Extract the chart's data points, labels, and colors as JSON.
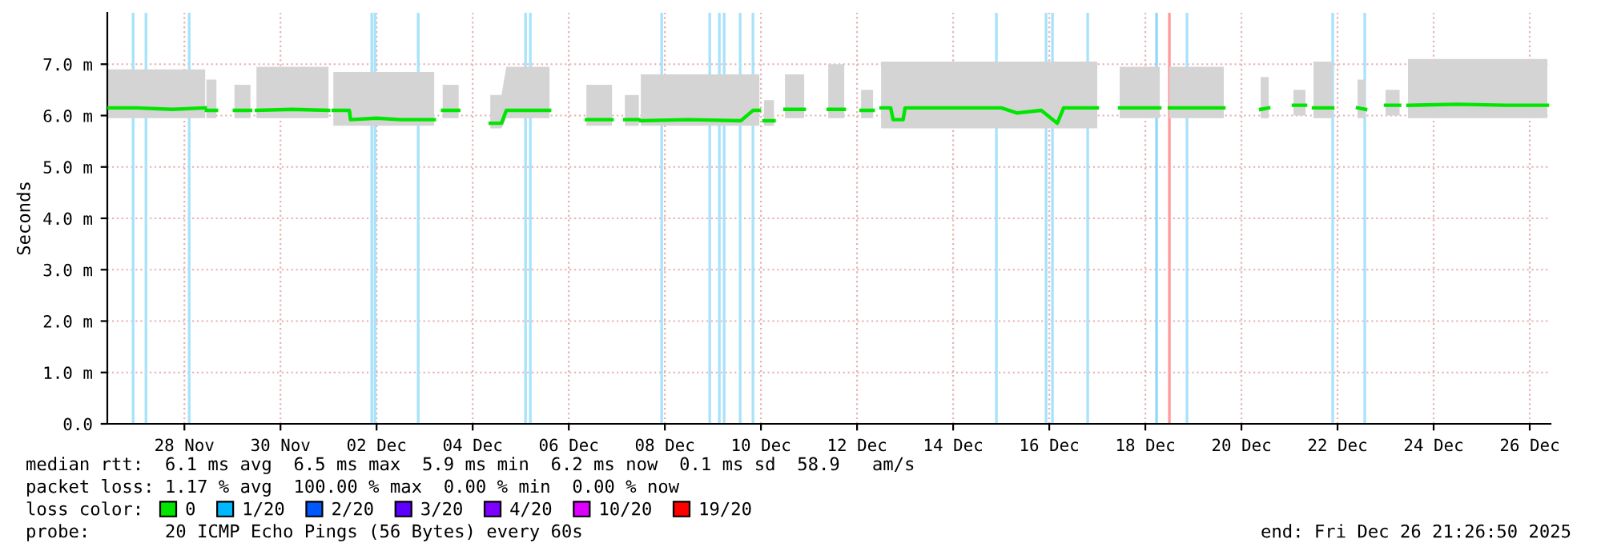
{
  "chart_data": {
    "type": "line",
    "ylabel": "Seconds",
    "xlim": [
      "2025-11-26T21:30",
      "2025-12-26T22:24"
    ],
    "ylim": [
      0,
      8
    ],
    "yticks": [
      {
        "value": 0,
        "label": "0.0"
      },
      {
        "value": 1,
        "label": "1.0 m"
      },
      {
        "value": 2,
        "label": "2.0 m"
      },
      {
        "value": 3,
        "label": "3.0 m"
      },
      {
        "value": 4,
        "label": "4.0 m"
      },
      {
        "value": 5,
        "label": "5.0 m"
      },
      {
        "value": 6,
        "label": "6.0 m"
      },
      {
        "value": 7,
        "label": "7.0 m"
      }
    ],
    "xticks": [
      {
        "value": "2025-11-28T12:00",
        "label": "28 Nov"
      },
      {
        "value": "2025-11-30T12:00",
        "label": "30 Nov"
      },
      {
        "value": "2025-12-02T12:00",
        "label": "02 Dec"
      },
      {
        "value": "2025-12-04T12:00",
        "label": "04 Dec"
      },
      {
        "value": "2025-12-06T12:00",
        "label": "06 Dec"
      },
      {
        "value": "2025-12-08T12:00",
        "label": "08 Dec"
      },
      {
        "value": "2025-12-10T12:00",
        "label": "10 Dec"
      },
      {
        "value": "2025-12-12T12:00",
        "label": "12 Dec"
      },
      {
        "value": "2025-12-14T12:00",
        "label": "14 Dec"
      },
      {
        "value": "2025-12-16T12:00",
        "label": "16 Dec"
      },
      {
        "value": "2025-12-18T12:00",
        "label": "18 Dec"
      },
      {
        "value": "2025-12-20T12:00",
        "label": "20 Dec"
      },
      {
        "value": "2025-12-22T12:00",
        "label": "22 Dec"
      },
      {
        "value": "2025-12-24T12:00",
        "label": "24 Dec"
      },
      {
        "value": "2025-12-26T12:00",
        "label": "26 Dec"
      }
    ],
    "grid": true,
    "legend": "bottom left",
    "series": [
      {
        "name": "0",
        "color": "#00e600",
        "x": [
          "2025-11-26T21:36",
          "2025-11-27T12:00",
          "2025-11-28T06:00",
          "2025-11-28T22:24",
          "2025-11-28T22:40",
          "2025-11-28T23:00",
          "2025-11-29T04:00",
          "2025-11-29T08:00",
          "2025-11-29T13:00",
          "2025-11-29T21:00",
          "2025-11-29T22:00",
          "2025-11-30T00:00",
          "2025-11-30T18:00",
          "2025-12-01T12:00",
          "2025-12-01T13:00",
          "2025-12-01T14:24",
          "2025-12-01T22:24",
          "2025-12-01T23:00",
          "2025-12-02T12:00",
          "2025-12-03T00:00",
          "2025-12-03T16:48",
          "2025-12-03T20:00",
          "2025-12-03T21:00",
          "2025-12-04T05:00",
          "2025-12-04T10:00",
          "2025-12-04T20:48",
          "2025-12-05T02:24",
          "2025-12-05T04:48",
          "2025-12-06T02:24",
          "2025-12-06T10:00",
          "2025-12-06T20:48",
          "2025-12-07T09:36",
          "2025-12-07T15:00",
          "2025-12-07T16:00",
          "2025-12-07T23:00",
          "2025-12-07T23:30",
          "2025-12-08T00:00",
          "2025-12-09T00:00",
          "2025-12-10T02:00",
          "2025-12-10T08:00",
          "2025-12-10T11:12",
          "2025-12-10T13:00",
          "2025-12-10T13:30",
          "2025-12-10T18:30",
          "2025-12-10T20:00",
          "2025-12-11T00:00",
          "2025-12-11T09:36",
          "2025-12-11T15:00",
          "2025-12-11T21:36",
          "2025-12-12T05:36",
          "2025-12-12T12:00",
          "2025-12-12T14:00",
          "2025-12-12T20:00",
          "2025-12-12T21:00",
          "2025-12-13T00:00",
          "2025-12-13T04:48",
          "2025-12-13T06:00",
          "2025-12-13T11:00",
          "2025-12-13T12:00",
          "2025-12-14T12:00",
          "2025-12-15T12:00",
          "2025-12-15T20:00",
          "2025-12-16T08:00",
          "2025-12-16T16:00",
          "2025-12-16T19:12",
          "2025-12-17T12:00",
          "2025-12-17T18:00",
          "2025-12-17T23:12",
          "2025-12-18T19:12",
          "2025-12-18T21:00",
          "2025-12-19T00:00",
          "2025-12-20T03:12",
          "2025-12-20T12:00",
          "2025-12-20T21:36",
          "2025-12-21T01:36",
          "2025-12-21T10:00",
          "2025-12-21T14:00",
          "2025-12-21T20:00",
          "2025-12-21T21:00",
          "2025-12-22T00:00",
          "2025-12-22T09:36",
          "2025-12-22T16:00",
          "2025-12-22T22:00",
          "2025-12-23T02:00",
          "2025-12-23T09:00",
          "2025-12-23T12:00",
          "2025-12-23T19:00",
          "2025-12-23T20:00",
          "2025-12-23T23:12",
          "2025-12-25T00:00",
          "2025-12-26T00:00",
          "2025-12-26T20:48"
        ],
        "values": [
          6.15,
          6.15,
          6.12,
          6.15,
          null,
          6.1,
          6.1,
          null,
          6.1,
          6.1,
          null,
          6.1,
          6.12,
          6.1,
          null,
          6.1,
          6.1,
          5.92,
          5.95,
          5.92,
          5.92,
          null,
          6.1,
          6.1,
          null,
          5.85,
          5.85,
          6.1,
          6.1,
          null,
          5.92,
          5.92,
          null,
          5.92,
          5.92,
          null,
          5.9,
          5.92,
          5.9,
          6.1,
          6.1,
          null,
          5.9,
          5.9,
          null,
          6.12,
          6.12,
          null,
          6.12,
          6.12,
          null,
          6.1,
          6.1,
          null,
          6.15,
          6.15,
          5.92,
          5.92,
          6.15,
          6.15,
          6.15,
          6.05,
          6.1,
          5.85,
          6.15,
          6.15,
          null,
          6.15,
          6.15,
          null,
          6.15,
          6.15,
          null,
          6.12,
          6.15,
          null,
          6.2,
          6.2,
          null,
          6.15,
          6.15,
          null,
          6.15,
          6.12,
          null,
          6.2,
          6.2,
          null,
          6.2,
          6.22,
          6.2,
          6.2
        ],
        "lower": [
          5.95,
          5.95,
          5.95,
          5.95,
          null,
          5.95,
          5.95,
          null,
          5.95,
          5.95,
          null,
          5.95,
          5.95,
          5.95,
          null,
          5.8,
          5.8,
          5.8,
          5.8,
          5.8,
          5.8,
          null,
          5.95,
          5.95,
          null,
          5.75,
          5.75,
          5.95,
          5.95,
          null,
          5.8,
          5.8,
          null,
          5.8,
          5.8,
          null,
          5.8,
          5.8,
          5.8,
          5.8,
          5.8,
          null,
          5.8,
          5.8,
          null,
          5.95,
          5.95,
          null,
          5.95,
          5.95,
          null,
          5.95,
          5.95,
          null,
          5.75,
          5.75,
          5.75,
          5.75,
          5.75,
          5.75,
          5.75,
          5.75,
          5.75,
          5.75,
          5.75,
          5.75,
          null,
          5.95,
          5.95,
          null,
          5.95,
          5.95,
          null,
          5.95,
          5.95,
          null,
          6.0,
          6.0,
          null,
          5.95,
          5.95,
          null,
          5.95,
          5.95,
          null,
          6.0,
          6.0,
          null,
          5.95,
          5.95,
          5.95,
          5.95
        ],
        "upper": [
          6.9,
          6.9,
          6.9,
          6.9,
          null,
          6.7,
          6.7,
          null,
          6.6,
          6.6,
          null,
          6.95,
          6.95,
          6.95,
          null,
          6.85,
          6.85,
          6.85,
          6.85,
          6.85,
          6.85,
          null,
          6.6,
          6.6,
          null,
          6.4,
          6.4,
          6.95,
          6.95,
          null,
          6.6,
          6.6,
          null,
          6.4,
          6.4,
          null,
          6.8,
          6.8,
          6.8,
          6.8,
          6.8,
          null,
          6.3,
          6.3,
          null,
          6.8,
          6.8,
          null,
          7.0,
          7.0,
          null,
          6.5,
          6.5,
          null,
          7.05,
          7.05,
          7.05,
          7.05,
          7.05,
          7.05,
          7.05,
          7.05,
          7.05,
          7.05,
          7.05,
          7.05,
          null,
          6.95,
          6.95,
          null,
          6.95,
          6.95,
          null,
          6.75,
          6.75,
          null,
          6.5,
          6.5,
          null,
          7.05,
          7.05,
          null,
          6.7,
          6.7,
          null,
          6.5,
          6.5,
          null,
          7.1,
          7.1,
          7.1,
          7.1
        ]
      },
      {
        "name": "1/20",
        "color": "#00b8ff"
      },
      {
        "name": "2/20",
        "color": "#0059ff"
      },
      {
        "name": "3/20",
        "color": "#5e00ff"
      },
      {
        "name": "4/20",
        "color": "#7e00ff"
      },
      {
        "name": "10/20",
        "color": "#dd00ff"
      },
      {
        "name": "19/20",
        "color": "#ff0000"
      }
    ],
    "ref_lines": [
      {
        "axis": "x",
        "value": "2025-11-27T10:24",
        "color": "#a8e2fb"
      },
      {
        "axis": "x",
        "value": "2025-11-27T16:48",
        "color": "#a8e2fb"
      },
      {
        "axis": "x",
        "value": "2025-11-28T14:24",
        "color": "#a8e2fb"
      },
      {
        "axis": "x",
        "value": "2025-12-02T09:36",
        "color": "#a8e2fb"
      },
      {
        "axis": "x",
        "value": "2025-12-02T11:12",
        "color": "#a8e2fb"
      },
      {
        "axis": "x",
        "value": "2025-12-03T08:48",
        "color": "#a8e2fb"
      },
      {
        "axis": "x",
        "value": "2025-12-05T14:24",
        "color": "#a8e2fb"
      },
      {
        "axis": "x",
        "value": "2025-12-05T16:48",
        "color": "#a8e2fb"
      },
      {
        "axis": "x",
        "value": "2025-12-08T10:24",
        "color": "#a8e2fb"
      },
      {
        "axis": "x",
        "value": "2025-12-09T10:24",
        "color": "#a8e2fb"
      },
      {
        "axis": "x",
        "value": "2025-12-09T15:12",
        "color": "#a8e2fb"
      },
      {
        "axis": "x",
        "value": "2025-12-09T17:36",
        "color": "#a8e2fb"
      },
      {
        "axis": "x",
        "value": "2025-12-10T01:36",
        "color": "#a8e2fb"
      },
      {
        "axis": "x",
        "value": "2025-12-10T08:00",
        "color": "#a8e2fb"
      },
      {
        "axis": "x",
        "value": "2025-12-15T09:36",
        "color": "#a8e2fb"
      },
      {
        "axis": "x",
        "value": "2025-12-16T10:24",
        "color": "#a8e2fb"
      },
      {
        "axis": "x",
        "value": "2025-12-16T13:36",
        "color": "#a8e2fb"
      },
      {
        "axis": "x",
        "value": "2025-12-17T07:12",
        "color": "#a8e2fb"
      },
      {
        "axis": "x",
        "value": "2025-12-18T17:36",
        "color": "#8fd8fa"
      },
      {
        "axis": "x",
        "value": "2025-12-19T00:00",
        "color": "#ff9a9a"
      },
      {
        "axis": "x",
        "value": "2025-12-19T08:48",
        "color": "#a8e2fb"
      },
      {
        "axis": "x",
        "value": "2025-12-22T09:36",
        "color": "#a8e2fb"
      },
      {
        "axis": "x",
        "value": "2025-12-23T01:36",
        "color": "#a8e2fb"
      }
    ],
    "annotations": [
      "median rtt:  6.1 ms avg  6.5 ms max  5.9 ms min  6.2 ms now  0.1 ms sd  58.9   am/s",
      "packet loss: 1.17 % avg  100.00 % max  0.00 % min  0.00 % now",
      "loss color:",
      "probe:       20 ICMP Echo Pings (56 Bytes) every 60s",
      "end: Fri Dec 26 21:26:50 2025"
    ]
  }
}
